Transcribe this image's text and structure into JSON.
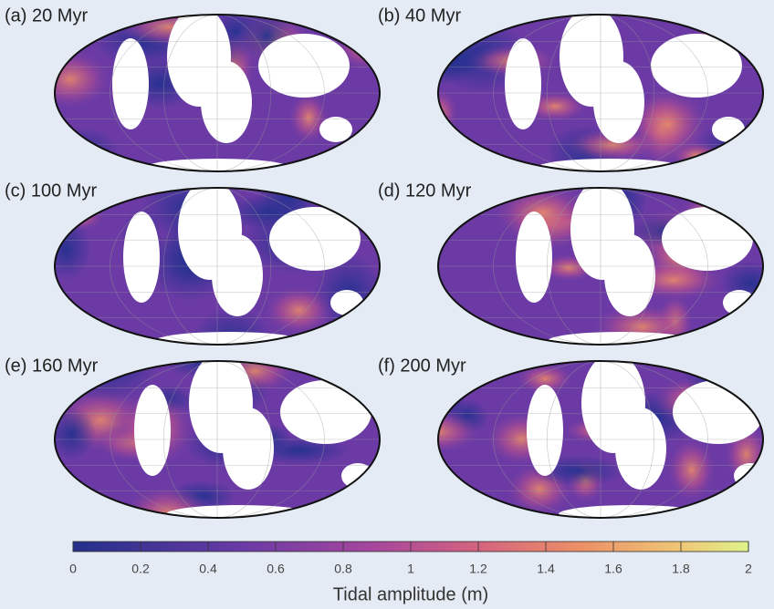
{
  "panels": [
    {
      "label": "(a) 20 Myr"
    },
    {
      "label": "(b) 40 Myr"
    },
    {
      "label": "(c) 100 Myr"
    },
    {
      "label": "(d)  120 Myr"
    },
    {
      "label": "(e) 160 Myr"
    },
    {
      "label": "(f)  200 Myr"
    }
  ],
  "colorbar": {
    "label": "Tidal amplitude (m)",
    "range": [
      0,
      2
    ],
    "ticks": [
      0,
      0.2,
      0.4,
      0.6,
      0.8,
      1,
      1.2,
      1.4,
      1.6,
      1.8,
      2
    ]
  }
}
